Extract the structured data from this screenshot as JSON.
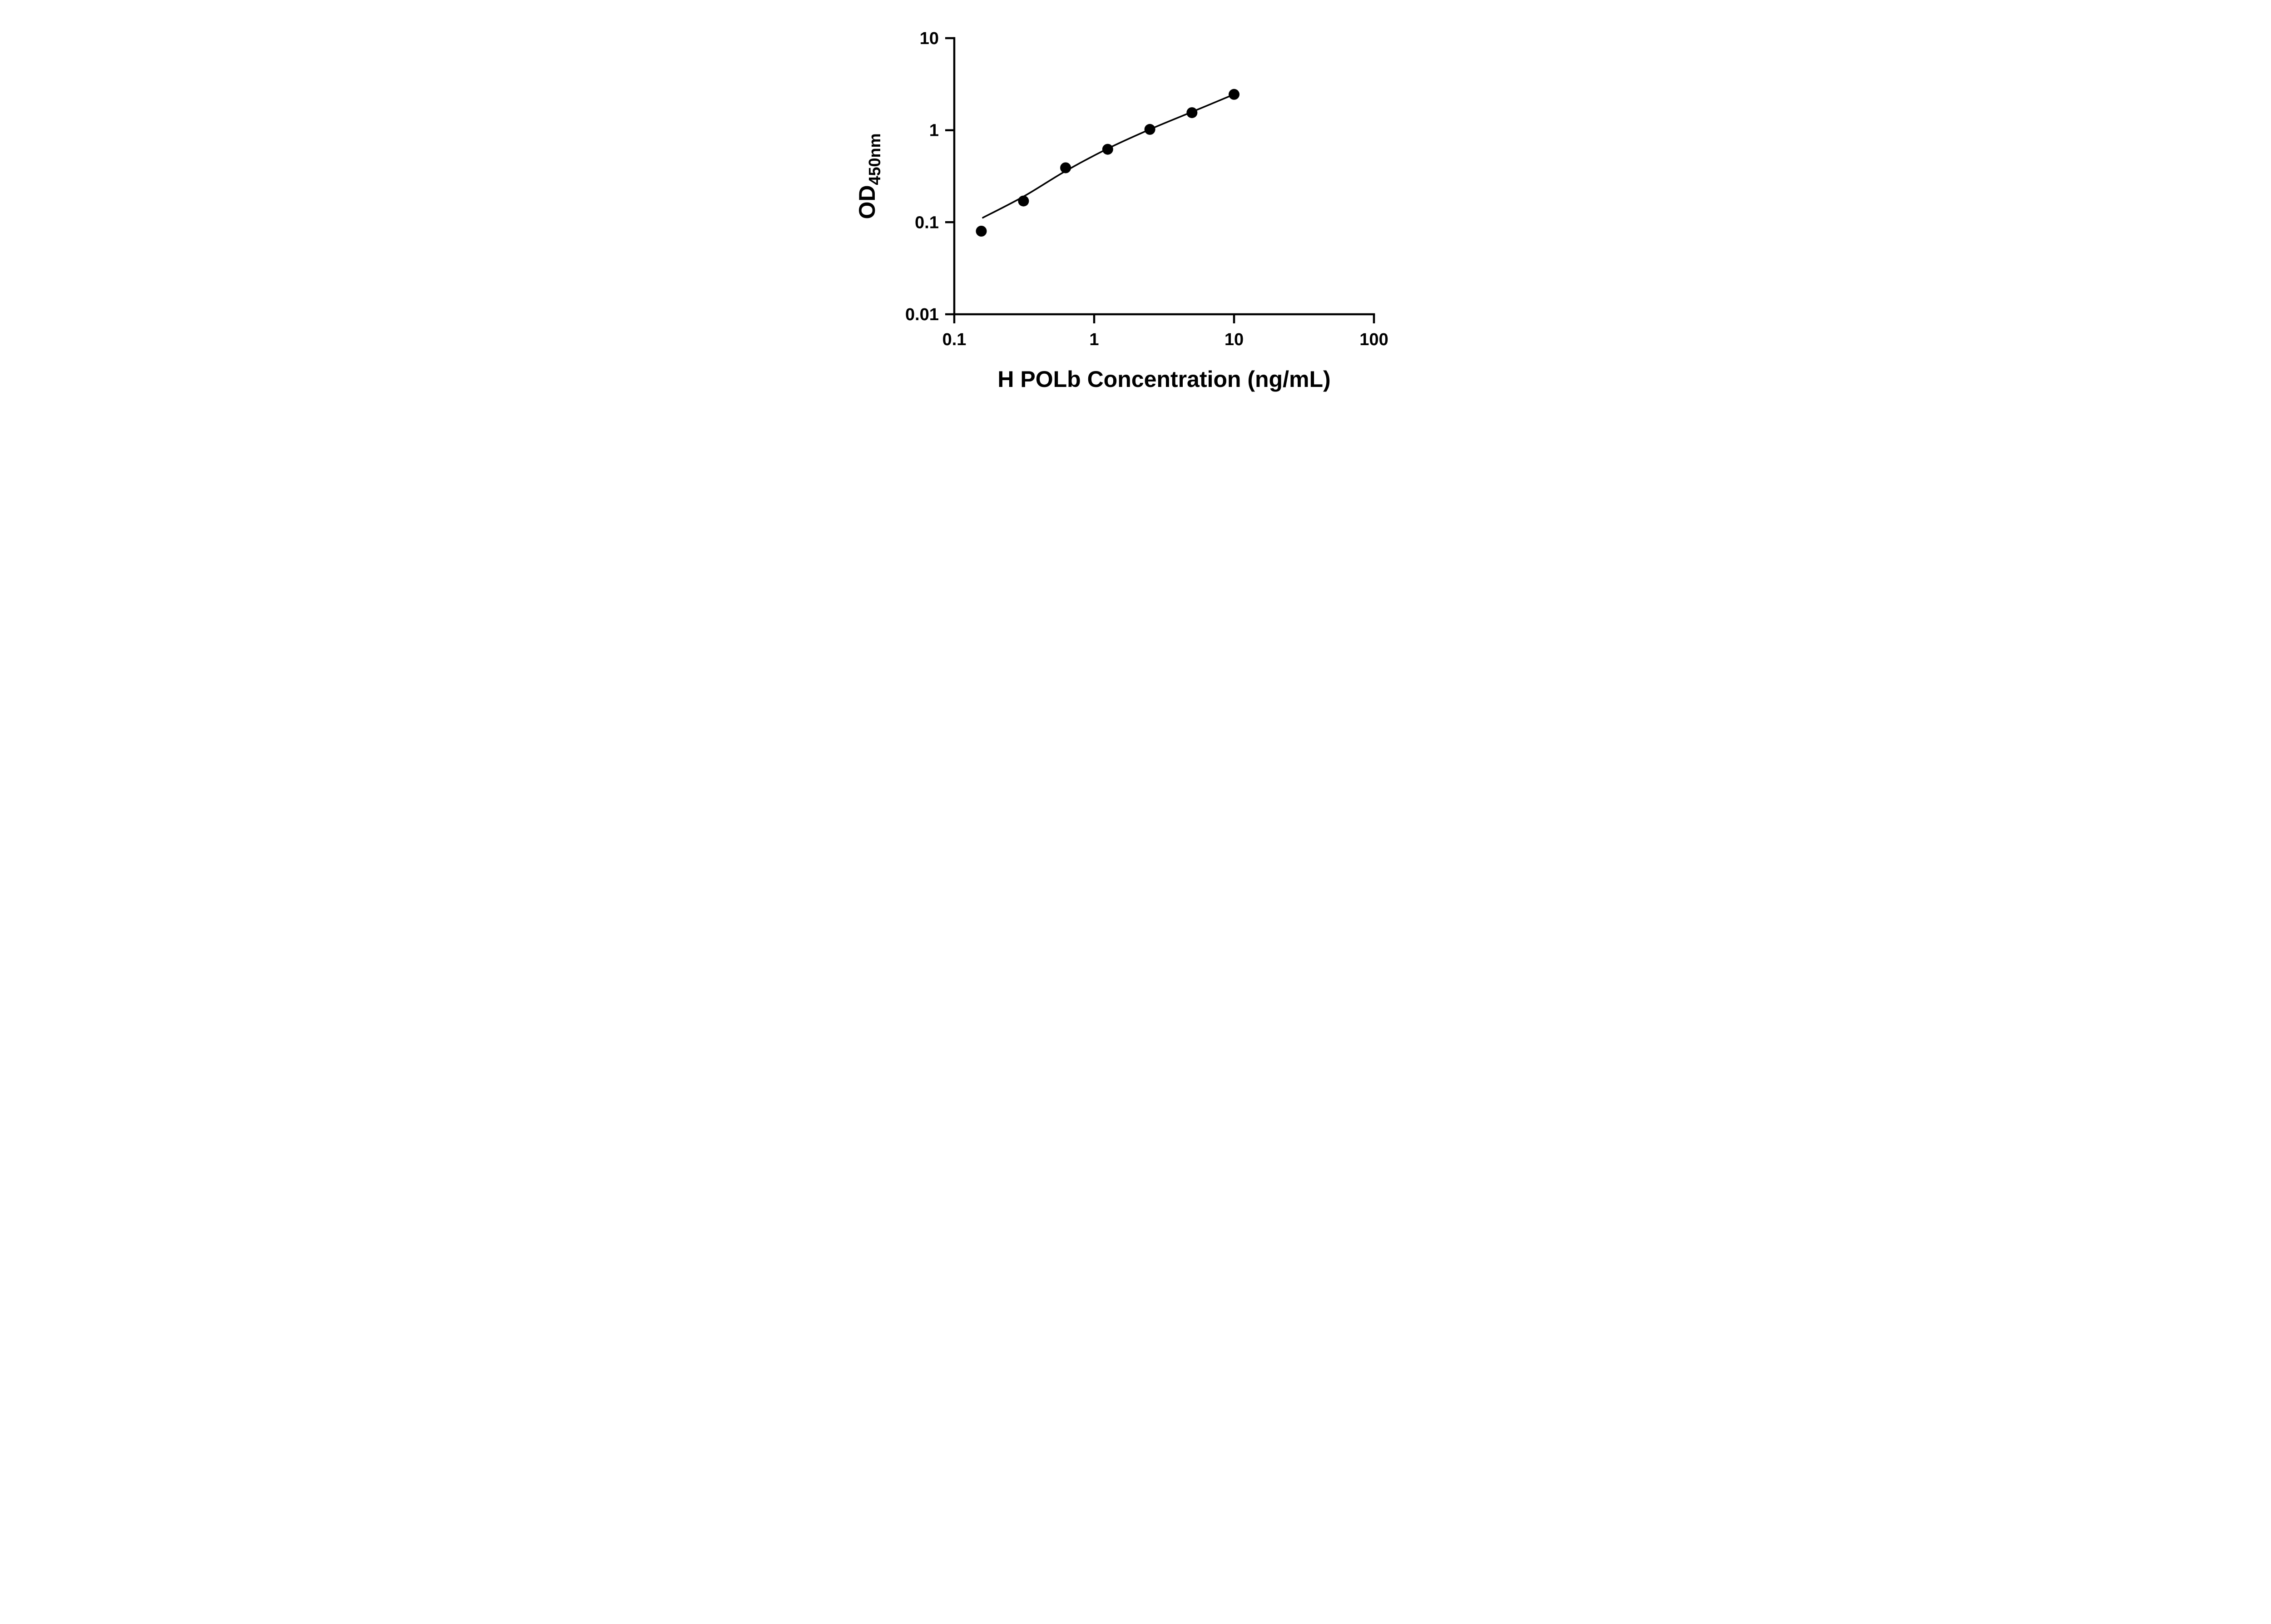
{
  "page": {
    "background": "#ffffff"
  },
  "chart_data": {
    "type": "scatter",
    "title": "",
    "xlabel": "H POLb Concentration (ng/mL)",
    "ylabel_main": "OD",
    "ylabel_sub": "450nm",
    "x_scale": "log",
    "y_scale": "log",
    "xlim": [
      0.1,
      100
    ],
    "ylim": [
      0.01,
      10
    ],
    "grid": false,
    "legend": false,
    "axis_color": "#000000",
    "point_color": "#000000",
    "line_color": "#000000",
    "marker_radius": 12,
    "x_ticks": [
      {
        "value": 0.1,
        "label": "0.1"
      },
      {
        "value": 1,
        "label": "1"
      },
      {
        "value": 10,
        "label": "10"
      },
      {
        "value": 100,
        "label": "100"
      }
    ],
    "y_ticks": [
      {
        "value": 0.01,
        "label": "0.01"
      },
      {
        "value": 0.1,
        "label": "0.1"
      },
      {
        "value": 1,
        "label": "1"
      },
      {
        "value": 10,
        "label": "10"
      }
    ],
    "series": [
      {
        "name": "fit-curve",
        "type": "line",
        "color": "#000000",
        "points": [
          {
            "x": 0.16,
            "y": 0.112
          },
          {
            "x": 0.3125,
            "y": 0.19
          },
          {
            "x": 0.625,
            "y": 0.36
          },
          {
            "x": 1.25,
            "y": 0.63
          },
          {
            "x": 2.5,
            "y": 1.02
          },
          {
            "x": 5,
            "y": 1.58
          },
          {
            "x": 10,
            "y": 2.45
          }
        ]
      },
      {
        "name": "standard-points",
        "type": "scatter",
        "color": "#000000",
        "points": [
          {
            "x": 0.156,
            "y": 0.08
          },
          {
            "x": 0.3125,
            "y": 0.17
          },
          {
            "x": 0.625,
            "y": 0.39
          },
          {
            "x": 1.25,
            "y": 0.62
          },
          {
            "x": 2.5,
            "y": 1.02
          },
          {
            "x": 5,
            "y": 1.55
          },
          {
            "x": 10,
            "y": 2.45
          }
        ]
      }
    ]
  }
}
